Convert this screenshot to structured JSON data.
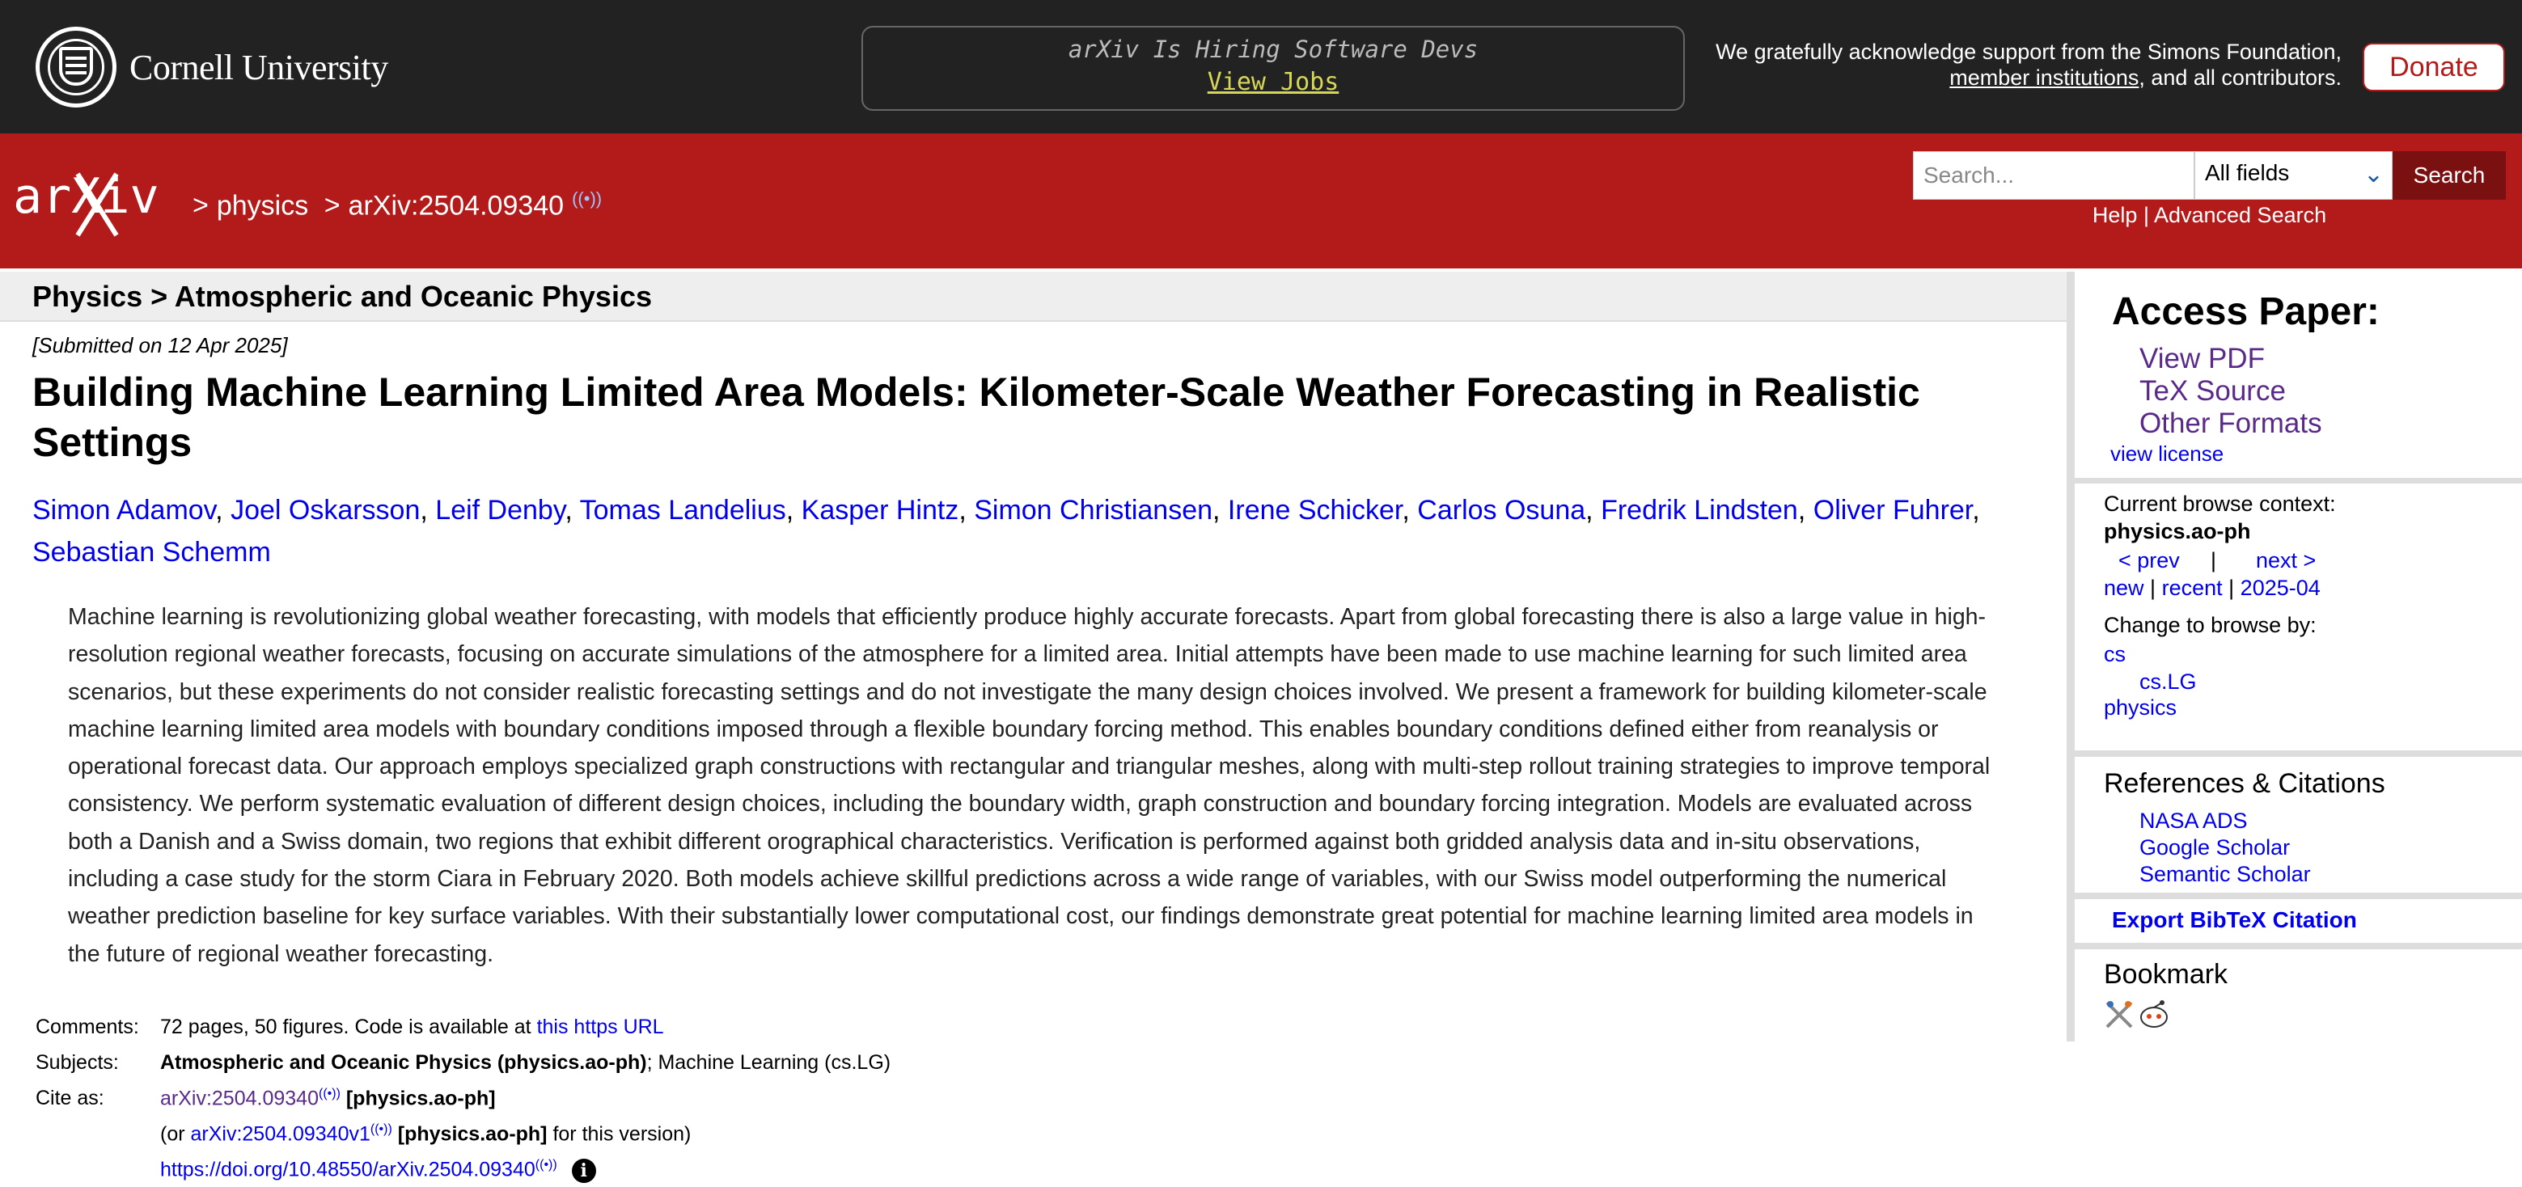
{
  "topbar": {
    "university": "Cornell University",
    "hiring_title": "arXiv Is Hiring Software Devs",
    "hiring_link": "View Jobs",
    "support_line1": "We gratefully acknowledge support from the Simons Foundation,",
    "support_link": "member institutions",
    "support_line2_rest": ", and all contributors.",
    "donate_label": "Donate"
  },
  "header": {
    "logo_text": "arXiv",
    "breadcrumb_sep": ">",
    "breadcrumb_physics": "physics",
    "breadcrumb_id": "arXiv:2504.09340",
    "search_placeholder": "Search...",
    "field_select": "All fields",
    "search_label": "Search",
    "help_label": "Help",
    "help_sep": "|",
    "advanced_label": "Advanced Search"
  },
  "main": {
    "subject_header": "Physics > Atmospheric and Oceanic Physics",
    "submitted": "[Submitted on 12 Apr 2025]",
    "title": "Building Machine Learning Limited Area Models: Kilometer-Scale Weather Forecasting in Realistic Settings",
    "authors": [
      "Simon Adamov",
      "Joel Oskarsson",
      "Leif Denby",
      "Tomas Landelius",
      "Kasper Hintz",
      "Simon Christiansen",
      "Irene Schicker",
      "Carlos Osuna",
      "Fredrik Lindsten",
      "Oliver Fuhrer",
      "Sebastian Schemm"
    ],
    "abstract": "Machine learning is revolutionizing global weather forecasting, with models that efficiently produce highly accurate forecasts. Apart from global forecasting there is also a large value in high-resolution regional weather forecasts, focusing on accurate simulations of the atmosphere for a limited area. Initial attempts have been made to use machine learning for such limited area scenarios, but these experiments do not consider realistic forecasting settings and do not investigate the many design choices involved. We present a framework for building kilometer-scale machine learning limited area models with boundary conditions imposed through a flexible boundary forcing method. This enables boundary conditions defined either from reanalysis or operational forecast data. Our approach employs specialized graph constructions with rectangular and triangular meshes, along with multi-step rollout training strategies to improve temporal consistency. We perform systematic evaluation of different design choices, including the boundary width, graph construction and boundary forcing integration. Models are evaluated across both a Danish and a Swiss domain, two regions that exhibit different orographical characteristics. Verification is performed against both gridded analysis data and in-situ observations, including a case study for the storm Ciara in February 2020. Both models achieve skillful predictions across a wide range of variables, with our Swiss model outperforming the numerical weather prediction baseline for key surface variables. With their substantially lower computational cost, our findings demonstrate great potential for machine learning limited area models in the future of regional weather forecasting.",
    "meta": {
      "comments_label": "Comments:",
      "comments_text": "72 pages, 50 figures. Code is available at ",
      "comments_link": "this https URL",
      "subjects_label": "Subjects:",
      "subjects_primary": "Atmospheric and Oceanic Physics (physics.ao-ph)",
      "subjects_rest": "; Machine Learning (cs.LG)",
      "cite_label": "Cite as:",
      "cite_id": "arXiv:2504.09340",
      "cite_bracket": "[physics.ao-ph]",
      "cite_or": "(or ",
      "cite_version_id": "arXiv:2504.09340v1",
      "cite_version_bracket": "[physics.ao-ph]",
      "cite_version_rest": " for this version)",
      "doi": "https://doi.org/10.48550/arXiv.2504.09340",
      "info_glyph": "i"
    }
  },
  "sidebar": {
    "access_title": "Access Paper:",
    "view_pdf": "View PDF",
    "tex_source": "TeX Source",
    "other_formats": "Other Formats",
    "view_license": "view license",
    "context_label": "Current browse context:",
    "context_value": "physics.ao-ph",
    "prev": "< prev",
    "pipe": "|",
    "next": "next >",
    "new": "new",
    "recent": "recent",
    "month": "2025-04",
    "change_label": "Change to browse by:",
    "browse_cs": "cs",
    "browse_cslg": "cs.LG",
    "browse_physics": "physics",
    "refs_title": "References & Citations",
    "nasa_ads": "NASA ADS",
    "google_scholar": "Google Scholar",
    "semantic_scholar": "Semantic Scholar",
    "export_bibtex": "Export BibTeX Citation",
    "bookmark_title": "Bookmark"
  },
  "colors": {
    "arxiv_red": "#b31b1b",
    "link_blue": "#0000ee",
    "visited_purple": "#5a2a8a",
    "topbar": "#222222"
  },
  "icons": [
    "cornell-seal-icon",
    "broadcast-icon",
    "chevron-down-icon",
    "info-icon",
    "bibsonomy-icon",
    "reddit-icon"
  ]
}
